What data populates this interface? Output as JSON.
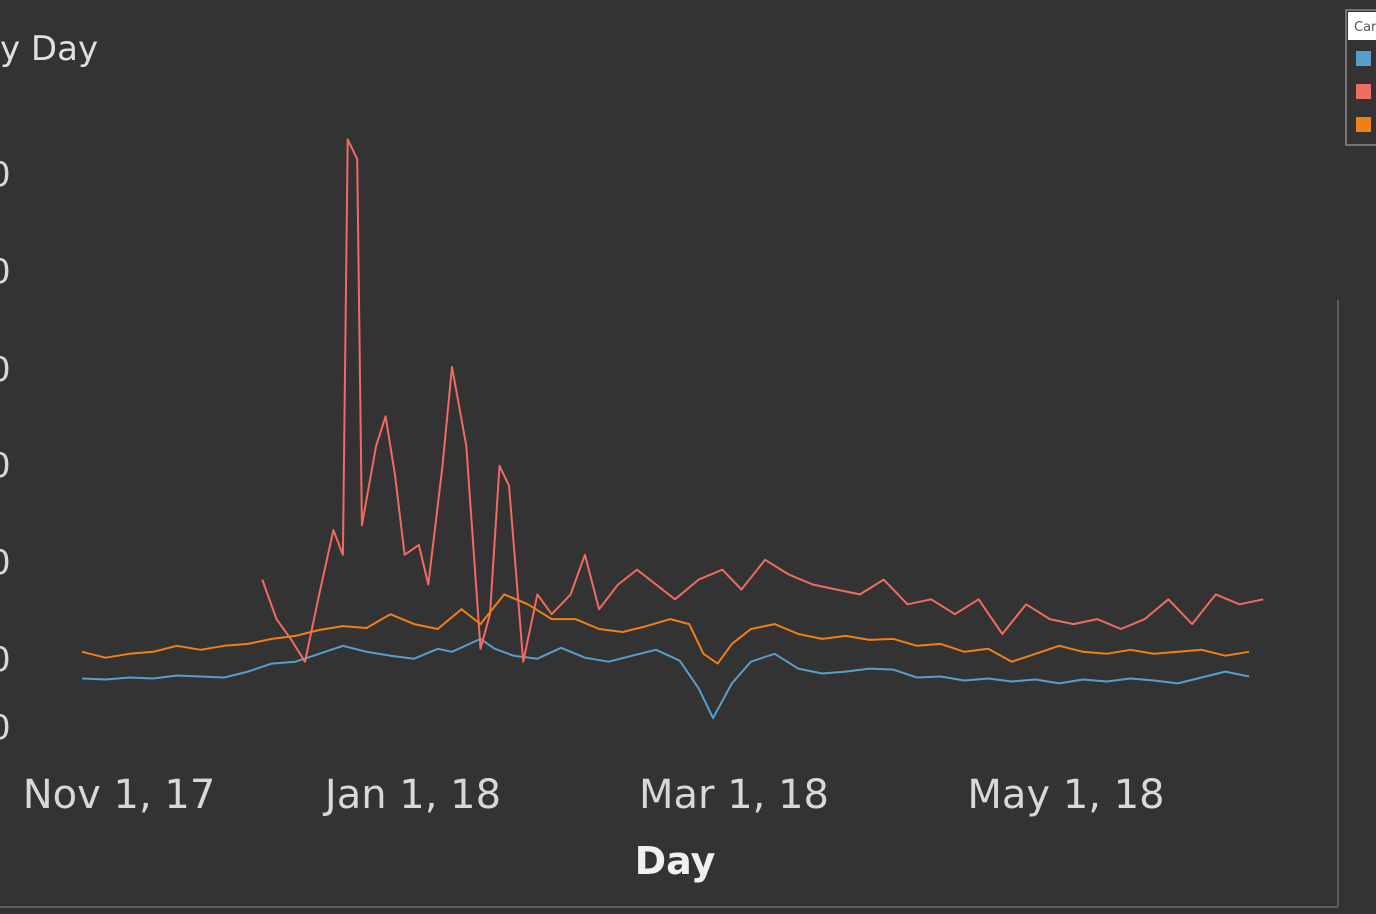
{
  "chart_data": {
    "type": "line",
    "title": "y Day",
    "xlabel": "Day",
    "ylabel": "",
    "x_ticks": [
      "Nov 1, 17",
      "Jan 1, 18",
      "Mar 1, 18",
      "May 1, 18"
    ],
    "y_ticks": [
      "0",
      "0",
      "0",
      "0",
      "0",
      "0",
      "0"
    ],
    "legend": {
      "title": "Car",
      "placement": "top-right",
      "entries": [
        {
          "name": "",
          "color": "#5b9dc9"
        },
        {
          "name": "",
          "color": "#f06b62"
        },
        {
          "name": "",
          "color": "#f07f1a"
        }
      ]
    },
    "x_start": "2017-10-15",
    "x_end": "2018-06-22",
    "ylim": [
      0,
      6.5
    ],
    "grid": false,
    "series": [
      {
        "name": "",
        "color": "#5b9dc9",
        "points": [
          [
            "2017-10-15",
            0.45
          ],
          [
            "2017-10-20",
            0.44
          ],
          [
            "2017-10-25",
            0.46
          ],
          [
            "2017-10-30",
            0.45
          ],
          [
            "2017-11-04",
            0.48
          ],
          [
            "2017-11-09",
            0.47
          ],
          [
            "2017-11-14",
            0.46
          ],
          [
            "2017-11-19",
            0.52
          ],
          [
            "2017-11-24",
            0.6
          ],
          [
            "2017-11-29",
            0.62
          ],
          [
            "2017-12-04",
            0.7
          ],
          [
            "2017-12-09",
            0.78
          ],
          [
            "2017-12-14",
            0.72
          ],
          [
            "2017-12-19",
            0.68
          ],
          [
            "2017-12-24",
            0.65
          ],
          [
            "2017-12-29",
            0.75
          ],
          [
            "2018-01-01",
            0.72
          ],
          [
            "2018-01-07",
            0.85
          ],
          [
            "2018-01-10",
            0.75
          ],
          [
            "2018-01-14",
            0.68
          ],
          [
            "2018-01-19",
            0.65
          ],
          [
            "2018-01-24",
            0.76
          ],
          [
            "2018-01-29",
            0.66
          ],
          [
            "2018-02-03",
            0.62
          ],
          [
            "2018-02-08",
            0.68
          ],
          [
            "2018-02-13",
            0.74
          ],
          [
            "2018-02-18",
            0.63
          ],
          [
            "2018-02-22",
            0.35
          ],
          [
            "2018-02-25",
            0.05
          ],
          [
            "2018-03-01",
            0.4
          ],
          [
            "2018-03-05",
            0.62
          ],
          [
            "2018-03-10",
            0.7
          ],
          [
            "2018-03-15",
            0.55
          ],
          [
            "2018-03-20",
            0.5
          ],
          [
            "2018-03-25",
            0.52
          ],
          [
            "2018-03-30",
            0.55
          ],
          [
            "2018-04-04",
            0.54
          ],
          [
            "2018-04-09",
            0.46
          ],
          [
            "2018-04-14",
            0.47
          ],
          [
            "2018-04-19",
            0.43
          ],
          [
            "2018-04-24",
            0.45
          ],
          [
            "2018-04-29",
            0.42
          ],
          [
            "2018-05-04",
            0.44
          ],
          [
            "2018-05-09",
            0.4
          ],
          [
            "2018-05-14",
            0.44
          ],
          [
            "2018-05-19",
            0.42
          ],
          [
            "2018-05-24",
            0.45
          ],
          [
            "2018-05-29",
            0.43
          ],
          [
            "2018-06-03",
            0.4
          ],
          [
            "2018-06-08",
            0.46
          ],
          [
            "2018-06-13",
            0.52
          ],
          [
            "2018-06-18",
            0.47
          ]
        ]
      },
      {
        "name": "",
        "color": "#f06b62",
        "points": [
          [
            "2017-11-22",
            1.45
          ],
          [
            "2017-11-25",
            1.05
          ],
          [
            "2017-11-28",
            0.85
          ],
          [
            "2017-12-01",
            0.62
          ],
          [
            "2017-12-04",
            1.3
          ],
          [
            "2017-12-07",
            1.95
          ],
          [
            "2017-12-09",
            1.7
          ],
          [
            "2017-12-10",
            5.9
          ],
          [
            "2017-12-12",
            5.7
          ],
          [
            "2017-12-13",
            2.0
          ],
          [
            "2017-12-16",
            2.8
          ],
          [
            "2017-12-18",
            3.1
          ],
          [
            "2017-12-20",
            2.5
          ],
          [
            "2017-12-22",
            1.7
          ],
          [
            "2017-12-25",
            1.8
          ],
          [
            "2017-12-27",
            1.4
          ],
          [
            "2017-12-30",
            2.6
          ],
          [
            "2018-01-01",
            3.6
          ],
          [
            "2018-01-04",
            2.8
          ],
          [
            "2018-01-07",
            0.75
          ],
          [
            "2018-01-09",
            1.1
          ],
          [
            "2018-01-11",
            2.6
          ],
          [
            "2018-01-13",
            2.4
          ],
          [
            "2018-01-16",
            0.62
          ],
          [
            "2018-01-19",
            1.3
          ],
          [
            "2018-01-22",
            1.1
          ],
          [
            "2018-01-26",
            1.3
          ],
          [
            "2018-01-29",
            1.7
          ],
          [
            "2018-02-01",
            1.15
          ],
          [
            "2018-02-05",
            1.4
          ],
          [
            "2018-02-09",
            1.55
          ],
          [
            "2018-02-13",
            1.4
          ],
          [
            "2018-02-17",
            1.25
          ],
          [
            "2018-02-22",
            1.45
          ],
          [
            "2018-02-27",
            1.55
          ],
          [
            "2018-03-03",
            1.35
          ],
          [
            "2018-03-08",
            1.65
          ],
          [
            "2018-03-13",
            1.5
          ],
          [
            "2018-03-18",
            1.4
          ],
          [
            "2018-03-23",
            1.35
          ],
          [
            "2018-03-28",
            1.3
          ],
          [
            "2018-04-02",
            1.45
          ],
          [
            "2018-04-07",
            1.2
          ],
          [
            "2018-04-12",
            1.25
          ],
          [
            "2018-04-17",
            1.1
          ],
          [
            "2018-04-22",
            1.25
          ],
          [
            "2018-04-27",
            0.9
          ],
          [
            "2018-05-02",
            1.2
          ],
          [
            "2018-05-07",
            1.05
          ],
          [
            "2018-05-12",
            1.0
          ],
          [
            "2018-05-17",
            1.05
          ],
          [
            "2018-05-22",
            0.95
          ],
          [
            "2018-05-27",
            1.05
          ],
          [
            "2018-06-01",
            1.25
          ],
          [
            "2018-06-06",
            1.0
          ],
          [
            "2018-06-11",
            1.3
          ],
          [
            "2018-06-16",
            1.2
          ],
          [
            "2018-06-21",
            1.25
          ]
        ]
      },
      {
        "name": "",
        "color": "#f07f1a",
        "points": [
          [
            "2017-10-15",
            0.72
          ],
          [
            "2017-10-20",
            0.66
          ],
          [
            "2017-10-25",
            0.7
          ],
          [
            "2017-10-30",
            0.72
          ],
          [
            "2017-11-04",
            0.78
          ],
          [
            "2017-11-09",
            0.74
          ],
          [
            "2017-11-14",
            0.78
          ],
          [
            "2017-11-19",
            0.8
          ],
          [
            "2017-11-24",
            0.85
          ],
          [
            "2017-11-29",
            0.88
          ],
          [
            "2017-12-04",
            0.94
          ],
          [
            "2017-12-09",
            0.98
          ],
          [
            "2017-12-14",
            0.96
          ],
          [
            "2017-12-19",
            1.1
          ],
          [
            "2017-12-24",
            1.0
          ],
          [
            "2017-12-29",
            0.95
          ],
          [
            "2018-01-03",
            1.15
          ],
          [
            "2018-01-07",
            1.0
          ],
          [
            "2018-01-12",
            1.3
          ],
          [
            "2018-01-17",
            1.2
          ],
          [
            "2018-01-22",
            1.05
          ],
          [
            "2018-01-27",
            1.05
          ],
          [
            "2018-02-01",
            0.95
          ],
          [
            "2018-02-06",
            0.92
          ],
          [
            "2018-02-11",
            0.98
          ],
          [
            "2018-02-16",
            1.05
          ],
          [
            "2018-02-20",
            1.0
          ],
          [
            "2018-02-23",
            0.7
          ],
          [
            "2018-02-26",
            0.6
          ],
          [
            "2018-03-01",
            0.8
          ],
          [
            "2018-03-05",
            0.95
          ],
          [
            "2018-03-10",
            1.0
          ],
          [
            "2018-03-15",
            0.9
          ],
          [
            "2018-03-20",
            0.85
          ],
          [
            "2018-03-25",
            0.88
          ],
          [
            "2018-03-30",
            0.84
          ],
          [
            "2018-04-04",
            0.85
          ],
          [
            "2018-04-09",
            0.78
          ],
          [
            "2018-04-14",
            0.8
          ],
          [
            "2018-04-19",
            0.72
          ],
          [
            "2018-04-24",
            0.75
          ],
          [
            "2018-04-29",
            0.62
          ],
          [
            "2018-05-04",
            0.7
          ],
          [
            "2018-05-09",
            0.78
          ],
          [
            "2018-05-14",
            0.72
          ],
          [
            "2018-05-19",
            0.7
          ],
          [
            "2018-05-24",
            0.74
          ],
          [
            "2018-05-29",
            0.7
          ],
          [
            "2018-06-03",
            0.72
          ],
          [
            "2018-06-08",
            0.74
          ],
          [
            "2018-06-13",
            0.68
          ],
          [
            "2018-06-18",
            0.72
          ]
        ]
      }
    ]
  }
}
